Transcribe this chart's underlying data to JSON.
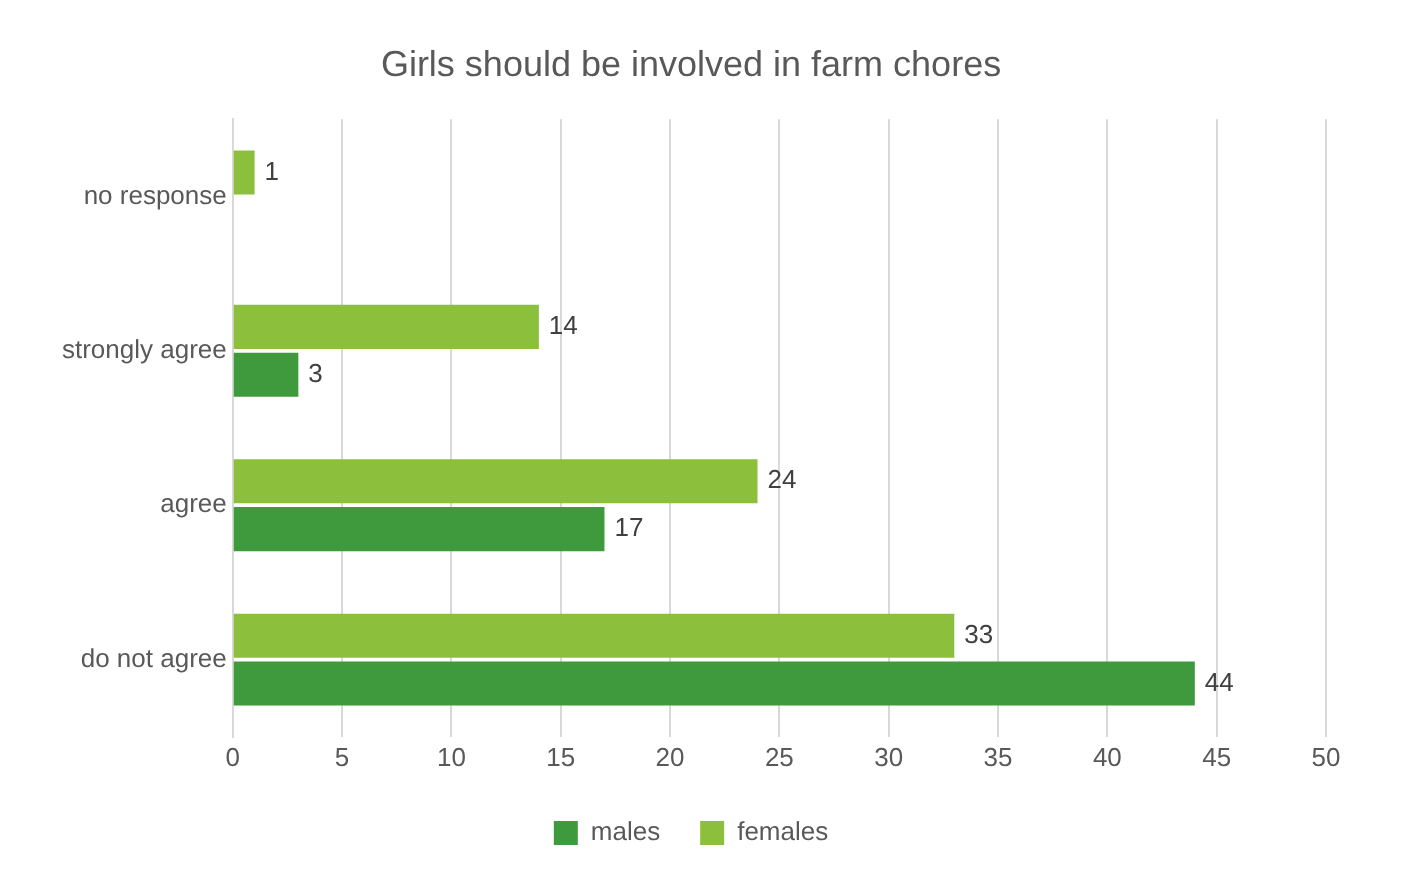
{
  "chart_data": {
    "type": "bar",
    "title": "Girls should be involved in farm chores",
    "orientation": "horizontal",
    "categories": [
      "no response",
      "strongly agree",
      "agree",
      "do not agree"
    ],
    "series": [
      {
        "name": "males",
        "color": "#3e9a3c",
        "values": [
          null,
          3,
          17,
          44
        ]
      },
      {
        "name": "females",
        "color": "#8cc03c",
        "values": [
          1,
          14,
          24,
          33
        ]
      }
    ],
    "xlim": [
      0,
      50
    ],
    "xticks": [
      0,
      5,
      10,
      15,
      20,
      25,
      30,
      35,
      40,
      45,
      50
    ],
    "grid": "x",
    "legend": "bottom",
    "data_labels": true
  }
}
